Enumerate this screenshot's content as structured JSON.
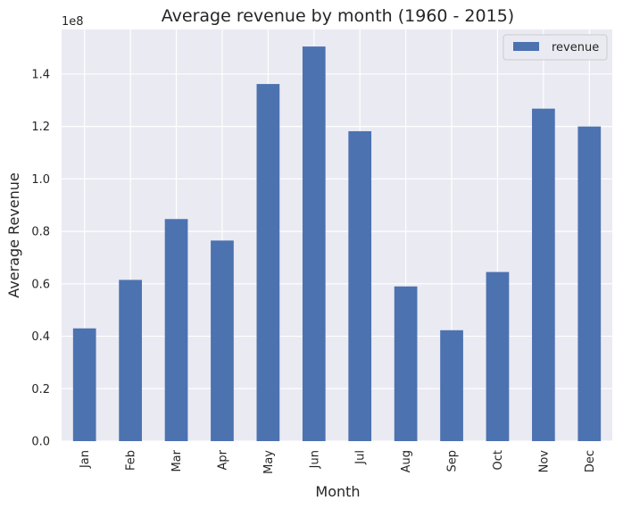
{
  "chart_data": {
    "type": "bar",
    "title": "Average revenue by month (1960 - 2015)",
    "xlabel": "Month",
    "ylabel": "Average Revenue",
    "offset_label": "1e8",
    "categories": [
      "Jan",
      "Feb",
      "Mar",
      "Apr",
      "May",
      "Jun",
      "Jul",
      "Aug",
      "Sep",
      "Oct",
      "Nov",
      "Dec"
    ],
    "series": [
      {
        "name": "revenue",
        "color": "#4c72b0",
        "values": [
          0.43,
          0.615,
          0.847,
          0.765,
          1.362,
          1.505,
          1.182,
          0.59,
          0.423,
          0.645,
          1.268,
          1.2
        ]
      }
    ],
    "ylim": [
      0,
      1.57
    ],
    "yticks": [
      "0.0",
      "0.2",
      "0.4",
      "0.6",
      "0.8",
      "1.0",
      "1.2",
      "1.4"
    ],
    "ytick_values": [
      0,
      0.2,
      0.4,
      0.6,
      0.8,
      1.0,
      1.2,
      1.4
    ],
    "grid": true,
    "legend_position": "top-right",
    "plot_background": "#eaeaf2",
    "grid_color": "#ffffff"
  }
}
